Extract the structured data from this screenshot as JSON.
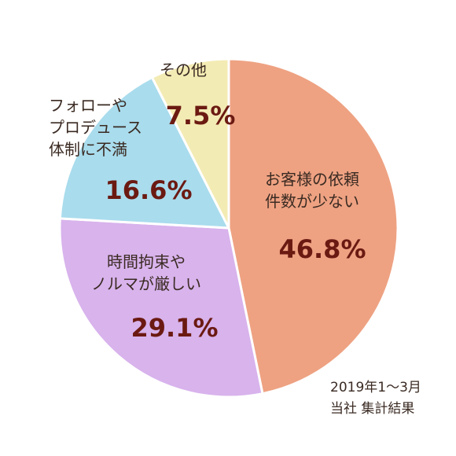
{
  "chart_data": {
    "type": "pie",
    "start": "12 o'clock",
    "direction": "clockwise",
    "slices": [
      {
        "label_lines": [
          "お客様の依頼",
          "件数が少ない"
        ],
        "value": 46.8,
        "value_label": "46.8%",
        "color": "#eea282"
      },
      {
        "label_lines": [
          "時間拘束や",
          "ノルマが厳しい"
        ],
        "value": 29.1,
        "value_label": "29.1%",
        "color": "#d8b3ec"
      },
      {
        "label_lines": [
          "フォローや",
          "プロデュース",
          "体制に不満"
        ],
        "value": 16.6,
        "value_label": "16.6%",
        "color": "#a9dced"
      },
      {
        "label_lines": [
          "その他"
        ],
        "value": 7.5,
        "value_label": "7.5%",
        "color": "#f3ebb4"
      }
    ],
    "slice_border_color": "#ffffff"
  },
  "note": {
    "line1": "2019年1～3月",
    "line2": "当社 集計結果"
  }
}
